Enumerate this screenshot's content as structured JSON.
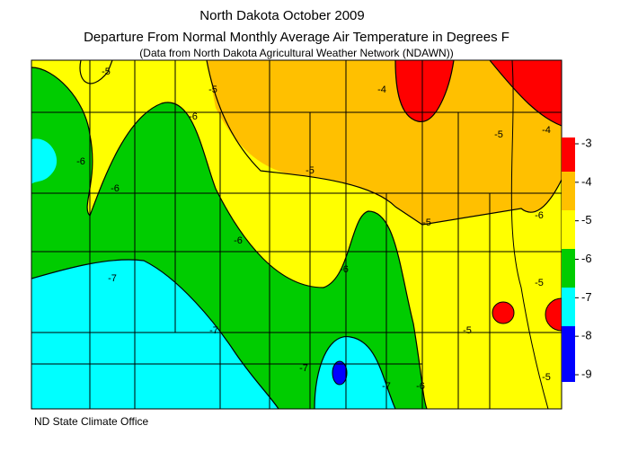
{
  "header": {
    "title": "North Dakota October 2009",
    "subtitle": "Departure From Normal Monthly Average Air Temperature in Degrees F",
    "source": "(Data from North Dakota Agricultural Weather Network (NDAWN))"
  },
  "legend": {
    "ticks": [
      -3,
      -4,
      -5,
      -6,
      -7,
      -8,
      -9
    ]
  },
  "contour_labels": [
    -5,
    -5,
    -6,
    -6,
    -6,
    -5,
    -5,
    -5,
    -4,
    -6,
    -6,
    -7,
    -7,
    -7,
    -7,
    -6,
    -6,
    -5,
    -5,
    -5,
    -4
  ],
  "footer": "ND State Climate Office"
}
